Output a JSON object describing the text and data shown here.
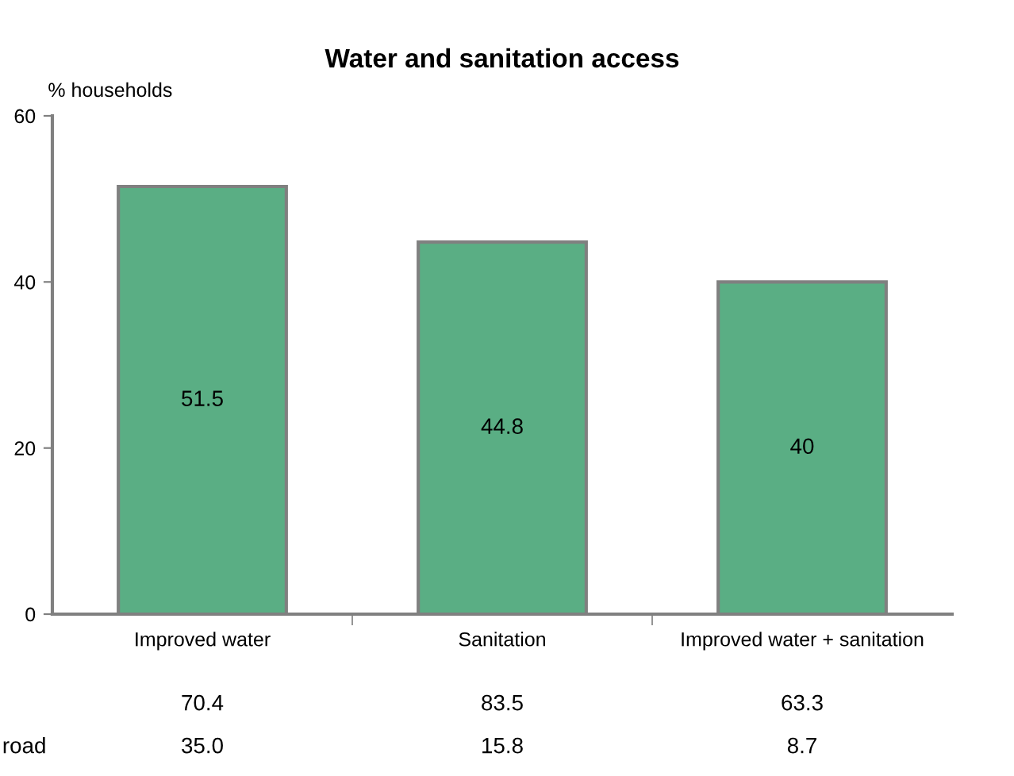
{
  "chart_data": {
    "type": "bar",
    "title": "Water and sanitation access",
    "ylabel": "% households",
    "categories": [
      "Improved water",
      "Sanitation",
      "Improved water + sanitation"
    ],
    "values": [
      51.5,
      44.8,
      40
    ],
    "color": "#5aae84",
    "data_labels": true,
    "ylim": [
      0,
      60
    ],
    "yticks": [
      0,
      20,
      40,
      60
    ],
    "grid": false,
    "annotations": [
      "70.4",
      "83.5",
      "63.3",
      "road",
      "35.0",
      "15.8",
      "8.7"
    ]
  }
}
